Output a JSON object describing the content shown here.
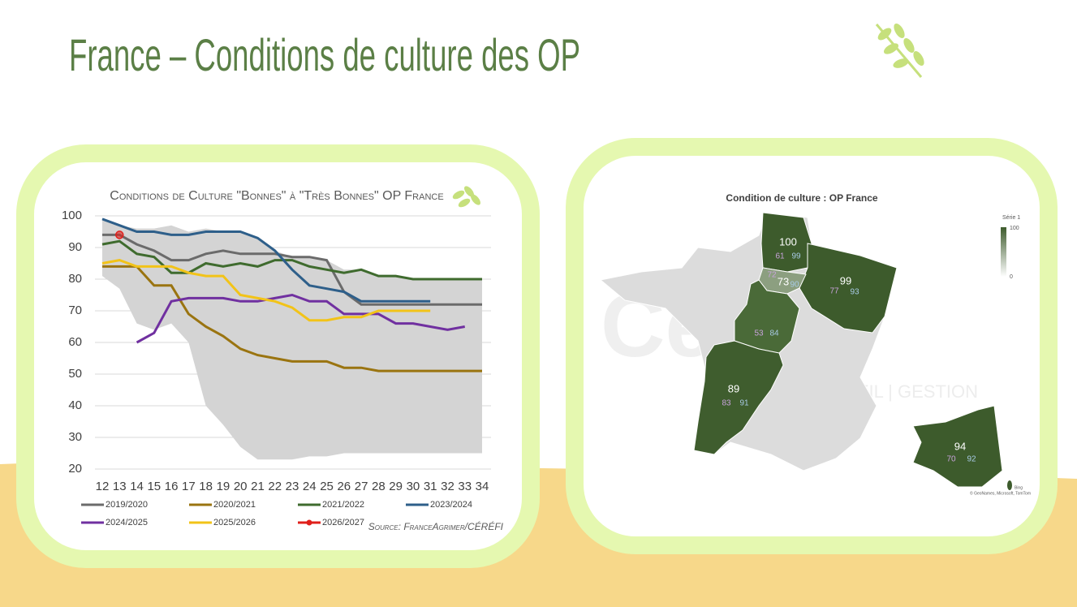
{
  "title": "France – Conditions de culture des OP",
  "chart_data": {
    "type": "line",
    "title": "Conditions de Culture \"Bonnes\" à \"Très Bonnes\" OP France",
    "source": "Source: FranceAgrimer/CÉRÉFI",
    "x": [
      12,
      13,
      14,
      15,
      16,
      17,
      18,
      19,
      20,
      21,
      22,
      23,
      24,
      25,
      26,
      27,
      28,
      29,
      30,
      31,
      32,
      33,
      34
    ],
    "xlim": [
      12,
      34
    ],
    "ylim": [
      20,
      100
    ],
    "yticks": [
      20,
      30,
      40,
      50,
      60,
      70,
      80,
      90,
      100
    ],
    "grid": true,
    "band": {
      "color": "#d4d4d4",
      "upper": [
        99,
        97,
        96,
        96,
        97,
        95,
        96,
        95,
        95,
        93,
        89,
        87,
        87,
        86,
        83,
        83,
        81,
        81,
        80,
        80,
        80,
        80,
        80
      ],
      "lower": [
        81,
        77,
        66,
        64,
        66,
        60,
        40,
        34,
        27,
        23,
        23,
        23,
        24,
        24,
        25,
        25,
        25,
        25,
        25,
        25,
        25,
        25,
        25
      ]
    },
    "series": [
      {
        "name": "2019/2020",
        "color": "#6b6b6b",
        "values": [
          94,
          94,
          91,
          89,
          86,
          86,
          88,
          89,
          88,
          88,
          88,
          87,
          87,
          86,
          76,
          72,
          72,
          72,
          72,
          72,
          72,
          72,
          72
        ]
      },
      {
        "name": "2020/2021",
        "color": "#9a7410",
        "values": [
          84,
          84,
          84,
          78,
          78,
          69,
          65,
          62,
          58,
          56,
          55,
          54,
          54,
          54,
          52,
          52,
          51,
          51,
          51,
          51,
          51,
          51,
          51
        ]
      },
      {
        "name": "2021/2022",
        "color": "#3f6b2e",
        "values": [
          91,
          92,
          88,
          87,
          82,
          82,
          85,
          84,
          85,
          84,
          86,
          86,
          84,
          83,
          82,
          83,
          81,
          81,
          80,
          80,
          80,
          80,
          80
        ]
      },
      {
        "name": "2023/2024",
        "color": "#2e5f8a",
        "values": [
          99,
          97,
          95,
          95,
          94,
          94,
          95,
          95,
          95,
          93,
          89,
          83,
          78,
          77,
          76,
          73,
          73,
          73,
          73,
          73,
          null,
          null,
          null
        ]
      },
      {
        "name": "2024/2025",
        "color": "#7030a0",
        "values": [
          null,
          null,
          60,
          63,
          73,
          74,
          74,
          74,
          73,
          73,
          74,
          75,
          73,
          73,
          69,
          69,
          69,
          66,
          66,
          65,
          64,
          65,
          null
        ]
      },
      {
        "name": "2025/2026",
        "color": "#f2c318",
        "values": [
          85,
          86,
          84,
          84,
          84,
          82,
          81,
          81,
          75,
          74,
          73,
          71,
          67,
          67,
          68,
          68,
          70,
          70,
          70,
          70,
          null,
          null,
          null
        ]
      },
      {
        "name": "2026/2027",
        "color": "#e0201b",
        "marker": true,
        "values": [
          null,
          94,
          null,
          null,
          null,
          null,
          null,
          null,
          null,
          null,
          null,
          null,
          null,
          null,
          null,
          null,
          null,
          null,
          null,
          null,
          null,
          null,
          null
        ]
      }
    ]
  },
  "map": {
    "title": "Condition de culture : OP France",
    "legend_title": "Série 1",
    "scale_max": 100,
    "scale_min": 0,
    "watermark": "Céréfi",
    "watermark_sub": "CONSEIL | GESTION",
    "attribution": "© GeoNames, Microsoft, TomTom",
    "provider": "Bing",
    "regions": [
      {
        "value": 100,
        "color": "#3d5b2c",
        "sub": [
          61,
          99
        ]
      },
      {
        "value": 99,
        "color": "#3d5b2c",
        "sub": [
          77,
          93
        ]
      },
      {
        "value": 73,
        "color": "#8c9f80",
        "sub": [
          72,
          90
        ]
      },
      {
        "color": "#4a6a38",
        "sub": [
          53,
          84
        ]
      },
      {
        "value": 89,
        "color": "#3f5d2e",
        "sub": [
          83,
          91
        ]
      },
      {
        "value": 94,
        "color": "#3d5b2c",
        "sub": [
          70,
          92
        ]
      }
    ]
  }
}
